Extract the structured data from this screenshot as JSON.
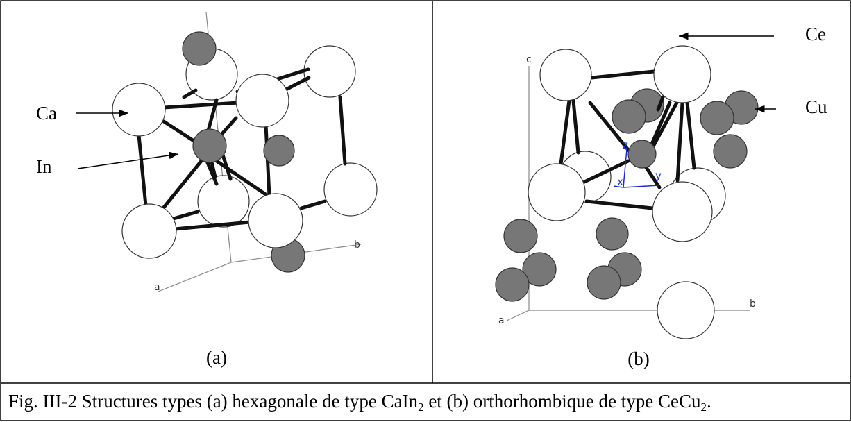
{
  "panels": [
    {
      "atoms": [
        "Ca",
        "In"
      ],
      "axes": [
        "a",
        "b"
      ],
      "label": "(a)"
    },
    {
      "atoms": [
        "Ce",
        "Cu"
      ],
      "axes": [
        "c",
        "a",
        "b"
      ],
      "local_axes": [
        "z",
        "x",
        "y"
      ],
      "label": "(b)"
    }
  ],
  "caption": {
    "parts": [
      "Fig. III-2 Structures types (a) hexagonale de type CaIn",
      "2",
      " et (b) orthorhombique de type CeCu",
      "2",
      "."
    ]
  }
}
